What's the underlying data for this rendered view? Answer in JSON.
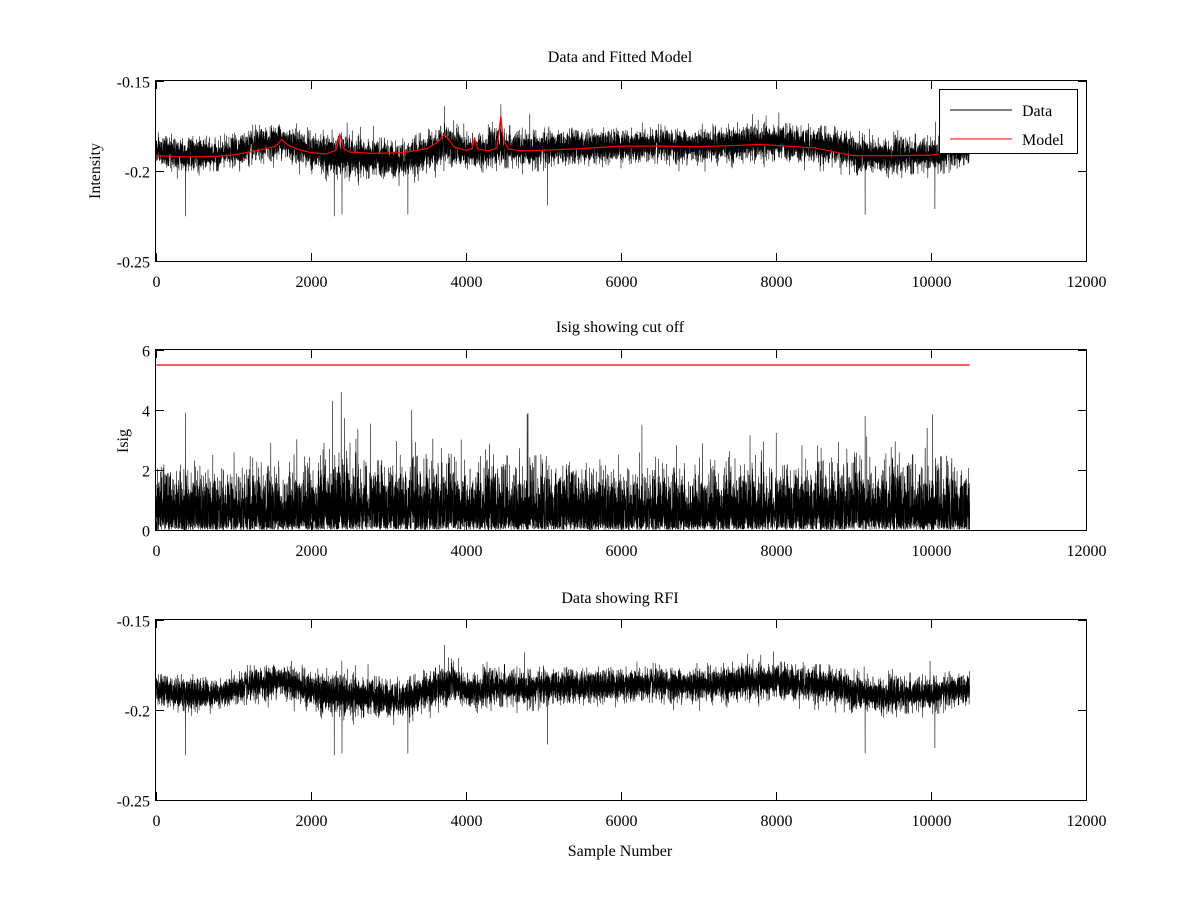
{
  "chart_data": [
    {
      "type": "line",
      "title": "Data and Fitted Model",
      "xlabel": "",
      "ylabel": "Intensity",
      "xlim": [
        0,
        12000
      ],
      "ylim": [
        -0.25,
        -0.15
      ],
      "y_reversed": true,
      "xticks": [
        "0",
        "2000",
        "4000",
        "6000",
        "8000",
        "10000",
        "12000"
      ],
      "yticks": [
        "-0.15",
        "-0.2",
        "-0.25"
      ],
      "ytick_values": [
        -0.15,
        -0.2,
        -0.25
      ],
      "grid": false,
      "legend": "top-right",
      "series": [
        {
          "name": "Data",
          "color": "#000000",
          "kind": "noise",
          "n": 10500,
          "envelope_x": [
            0,
            400,
            800,
            1200,
            1600,
            2000,
            2400,
            2800,
            3200,
            3600,
            3800,
            4000,
            4400,
            4800,
            5200,
            6000,
            7000,
            8000,
            8800,
            9200,
            10000,
            10500
          ],
          "center": [
            -0.189,
            -0.191,
            -0.191,
            -0.187,
            -0.183,
            -0.189,
            -0.192,
            -0.193,
            -0.194,
            -0.188,
            -0.184,
            -0.19,
            -0.187,
            -0.188,
            -0.187,
            -0.186,
            -0.186,
            -0.184,
            -0.187,
            -0.192,
            -0.191,
            -0.188
          ],
          "spread": [
            0.009,
            0.012,
            0.009,
            0.011,
            0.011,
            0.012,
            0.014,
            0.013,
            0.012,
            0.013,
            0.013,
            0.012,
            0.012,
            0.012,
            0.011,
            0.011,
            0.011,
            0.012,
            0.012,
            0.012,
            0.011,
            0.01
          ],
          "spikes": [
            [
              380,
              -0.225
            ],
            [
              2300,
              -0.225
            ],
            [
              2400,
              -0.224
            ],
            [
              3250,
              -0.224
            ],
            [
              3720,
              -0.164
            ],
            [
              4450,
              -0.163
            ],
            [
              5050,
              -0.219
            ],
            [
              9150,
              -0.224
            ],
            [
              10050,
              -0.221
            ]
          ]
        },
        {
          "name": "Model",
          "color": "#ff0000",
          "kind": "line",
          "x": [
            0,
            400,
            800,
            1000,
            1200,
            1400,
            1550,
            1620,
            1700,
            1850,
            2000,
            2200,
            2320,
            2370,
            2420,
            2500,
            2800,
            3200,
            3500,
            3650,
            3720,
            3760,
            3850,
            4000,
            4080,
            4110,
            4150,
            4300,
            4400,
            4450,
            4480,
            4550,
            4700,
            5000,
            5500,
            6000,
            6500,
            7000,
            7500,
            7800,
            8000,
            8500,
            9000,
            9500,
            10000,
            10100
          ],
          "y": [
            -0.1915,
            -0.1922,
            -0.1918,
            -0.191,
            -0.1895,
            -0.1878,
            -0.1862,
            -0.1825,
            -0.1855,
            -0.1882,
            -0.1898,
            -0.1905,
            -0.1885,
            -0.1795,
            -0.1875,
            -0.1895,
            -0.1902,
            -0.1898,
            -0.1875,
            -0.1835,
            -0.1795,
            -0.1815,
            -0.1868,
            -0.1885,
            -0.1875,
            -0.1815,
            -0.1878,
            -0.1888,
            -0.1872,
            -0.1695,
            -0.1825,
            -0.1878,
            -0.1888,
            -0.1885,
            -0.1875,
            -0.1862,
            -0.1862,
            -0.1865,
            -0.1858,
            -0.1852,
            -0.1858,
            -0.1872,
            -0.1915,
            -0.1915,
            -0.1912,
            -0.1905
          ]
        }
      ]
    },
    {
      "type": "line",
      "title": "Isig showing cut off",
      "xlabel": "",
      "ylabel": "Isig",
      "xlim": [
        0,
        12000
      ],
      "ylim": [
        0,
        6
      ],
      "y_reversed": false,
      "xticks": [
        "0",
        "2000",
        "4000",
        "6000",
        "8000",
        "10000",
        "12000"
      ],
      "yticks": [
        "0",
        "2",
        "4",
        "6"
      ],
      "ytick_values": [
        0,
        2,
        4,
        6
      ],
      "grid": false,
      "legend": "none",
      "series": [
        {
          "name": "",
          "color": "#000000",
          "kind": "abs-noise",
          "n": 10500,
          "envelope_x": [
            0,
            1000,
            2000,
            2400,
            3000,
            3400,
            4000,
            5000,
            6000,
            7000,
            8000,
            9000,
            10000,
            10500
          ],
          "scale": [
            0.85,
            0.85,
            0.9,
            1.05,
            0.95,
            1.0,
            0.9,
            0.9,
            0.85,
            0.85,
            0.9,
            0.95,
            0.9,
            0.85
          ],
          "spikes": [
            [
              380,
              3.9
            ],
            [
              2280,
              4.3
            ],
            [
              2390,
              4.6
            ],
            [
              3300,
              4.0
            ],
            [
              4800,
              3.9
            ],
            [
              6270,
              3.5
            ],
            [
              9150,
              3.8
            ],
            [
              9950,
              3.4
            ]
          ]
        },
        {
          "name": "",
          "color": "#ff0000",
          "kind": "line",
          "x": [
            0,
            10500
          ],
          "y": [
            5.5,
            5.5
          ]
        }
      ]
    },
    {
      "type": "line",
      "title": "Data showing RFI",
      "xlabel": "Sample Number",
      "ylabel": "",
      "xlim": [
        0,
        12000
      ],
      "ylim": [
        -0.25,
        -0.15
      ],
      "y_reversed": true,
      "xticks": [
        "0",
        "2000",
        "4000",
        "6000",
        "8000",
        "10000",
        "12000"
      ],
      "yticks": [
        "-0.15",
        "-0.2",
        "-0.25"
      ],
      "ytick_values": [
        -0.15,
        -0.2,
        -0.25
      ],
      "grid": false,
      "legend": "none",
      "series": [
        {
          "name": "",
          "color": "#000000",
          "kind": "noise",
          "n": 10500,
          "envelope_x": [
            0,
            400,
            800,
            1200,
            1600,
            2000,
            2400,
            2800,
            3200,
            3600,
            3800,
            4000,
            4400,
            4800,
            5200,
            6000,
            7000,
            8000,
            8800,
            9200,
            10000,
            10500
          ],
          "center": [
            -0.189,
            -0.191,
            -0.191,
            -0.187,
            -0.183,
            -0.189,
            -0.192,
            -0.193,
            -0.194,
            -0.188,
            -0.184,
            -0.19,
            -0.187,
            -0.188,
            -0.187,
            -0.186,
            -0.186,
            -0.184,
            -0.187,
            -0.192,
            -0.191,
            -0.188
          ],
          "spread": [
            0.009,
            0.012,
            0.009,
            0.011,
            0.011,
            0.012,
            0.014,
            0.013,
            0.012,
            0.013,
            0.013,
            0.012,
            0.012,
            0.012,
            0.011,
            0.011,
            0.011,
            0.012,
            0.012,
            0.012,
            0.011,
            0.01
          ],
          "spikes": [
            [
              380,
              -0.225
            ],
            [
              2300,
              -0.225
            ],
            [
              2400,
              -0.224
            ],
            [
              3250,
              -0.224
            ],
            [
              3720,
              -0.164
            ],
            [
              5050,
              -0.219
            ],
            [
              9150,
              -0.224
            ],
            [
              10050,
              -0.221
            ]
          ]
        }
      ]
    }
  ]
}
